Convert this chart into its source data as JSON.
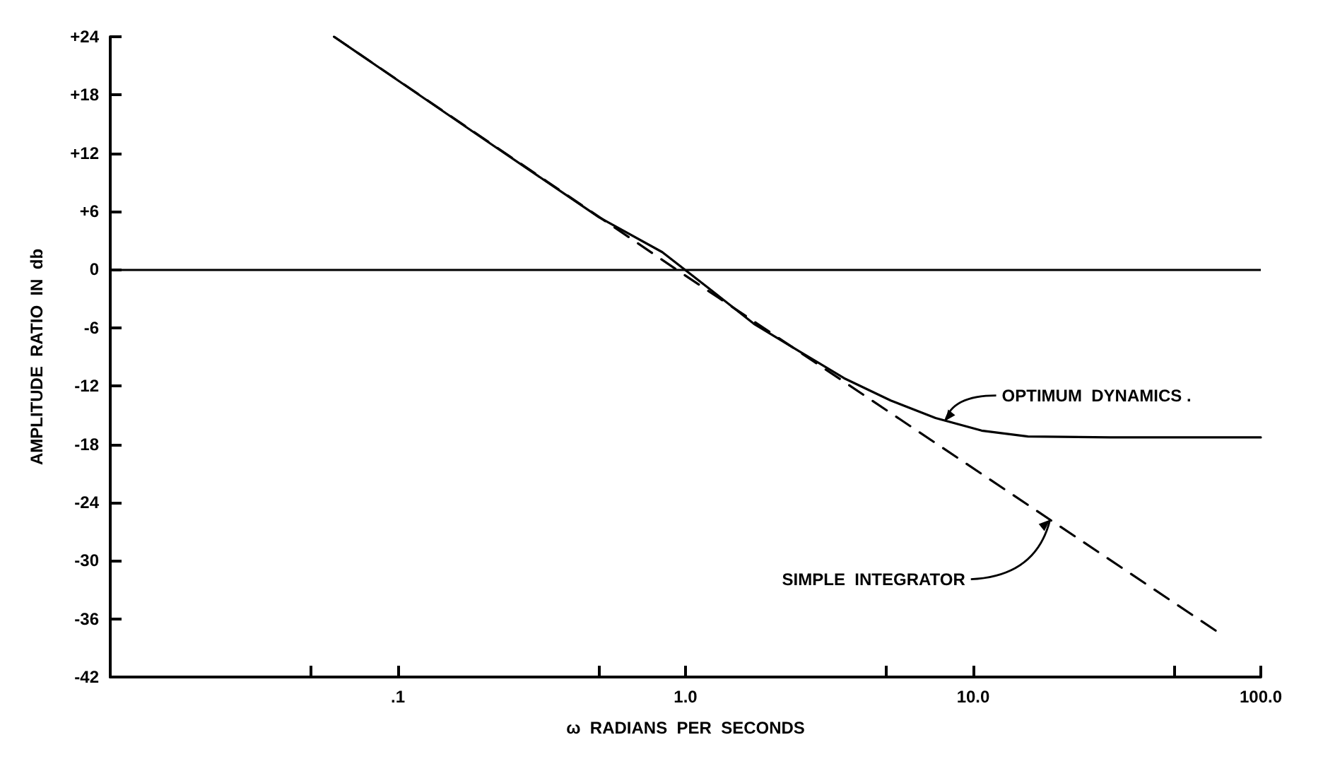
{
  "chart_data": {
    "type": "line",
    "xlabel": "ω  RADIANS  PER  SECONDS",
    "ylabel": "AMPLITUDE  RATIO  IN  db",
    "log": "x",
    "marker": "none",
    "grid": false,
    "xlim": [
      0.01,
      100
    ],
    "xticks": [
      {
        "value": 0.05,
        "label": null
      },
      {
        "value": 0.1,
        "label": ".1"
      },
      {
        "value": 0.5,
        "label": null
      },
      {
        "value": 1,
        "label": "1.0"
      },
      {
        "value": 5,
        "label": null
      },
      {
        "value": 10,
        "label": "10.0"
      },
      {
        "value": 50,
        "label": null
      },
      {
        "value": 100,
        "label": "100.0"
      }
    ],
    "ylim": [
      -42,
      24
    ],
    "yticks": [
      {
        "value": 24,
        "label": "+24"
      },
      {
        "value": 18,
        "label": "+18"
      },
      {
        "value": 12,
        "label": "+12"
      },
      {
        "value": 6,
        "label": "+6"
      },
      0,
      -6,
      -12,
      -18,
      -24,
      -30,
      -36,
      -42
    ],
    "series": [
      {
        "color": "#000000",
        "line_style": "solid",
        "x": [
          0.06,
          0.2,
          0.5,
          0.83,
          1.19,
          1.73,
          2.48,
          3.56,
          5.17,
          7.4,
          10.7,
          15.5,
          30,
          100
        ],
        "values": [
          24,
          13.4,
          5.4,
          1.8,
          -1.8,
          -5.6,
          -8.4,
          -11.2,
          -13.5,
          -15.3,
          -16.6,
          -17.2,
          -17.3,
          -17.3
        ]
      },
      {
        "color": "#000000",
        "line_style": "dashed",
        "x": [
          0.06,
          0.93,
          72
        ],
        "values": [
          24,
          0,
          -37.5
        ]
      }
    ],
    "ref_lines": [
      {
        "axis": "y",
        "value": 0,
        "color": "#000000",
        "line_style": "solid"
      }
    ],
    "annotations": [
      {
        "text": "OPTIMUM  DYNAMICS .",
        "x": 8.0,
        "y": -15.6
      },
      {
        "text": "SIMPLE  INTEGRATOR",
        "x": 18.5,
        "y": -25.8
      }
    ]
  }
}
